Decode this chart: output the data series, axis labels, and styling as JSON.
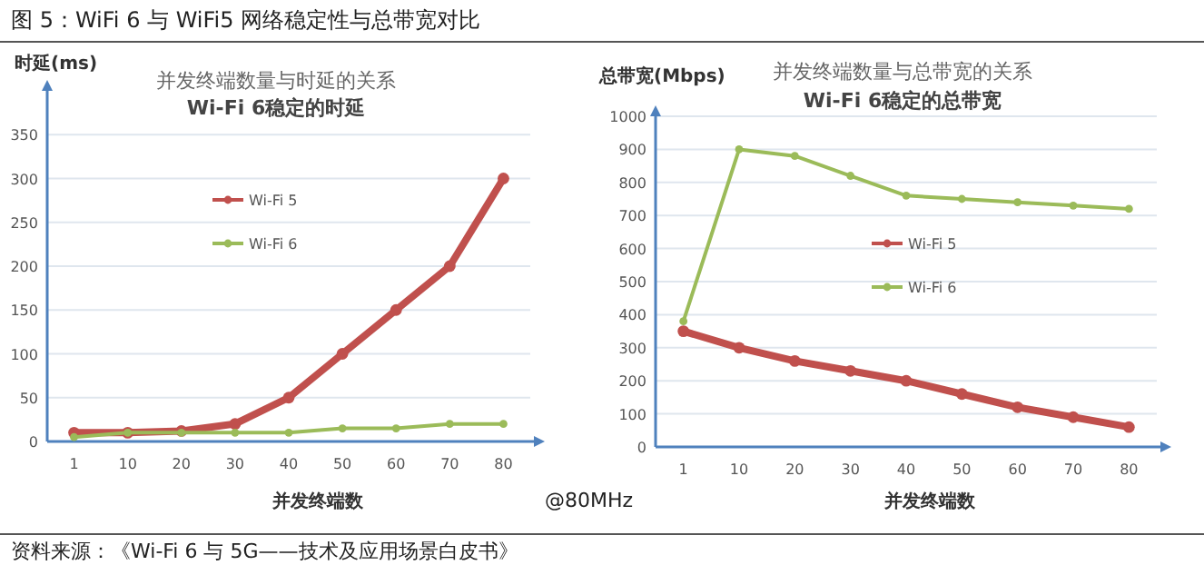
{
  "chart_data": [
    {
      "type": "line",
      "title": "并发终端数量与时延的关系",
      "subtitle": "Wi-Fi 6稳定的时延",
      "ylabel": "时延(ms)",
      "xlabel": "并发终端数",
      "categories": [
        "1",
        "10",
        "20",
        "30",
        "40",
        "50",
        "60",
        "70",
        "80"
      ],
      "ylim": [
        0,
        400
      ],
      "yticks": [
        0,
        50,
        100,
        150,
        200,
        250,
        300,
        350
      ],
      "grid": "y",
      "marker": "circle",
      "legend": "center",
      "annotations": [
        "图 5：WiFi 6 与 WiFi5 网络稳定性与总带宽对比"
      ],
      "series": [
        {
          "name": "Wi-Fi 5",
          "color": "#c0504d",
          "values": [
            10,
            10,
            12,
            20,
            50,
            100,
            150,
            200,
            300
          ]
        },
        {
          "name": "Wi-Fi 6",
          "color": "#9bbb59",
          "values": [
            5,
            10,
            10,
            10,
            10,
            15,
            15,
            20,
            20
          ]
        }
      ]
    },
    {
      "type": "line",
      "title": "并发终端数量与总带宽的关系",
      "subtitle": "Wi-Fi 6稳定的总带宽",
      "ylabel": "总带宽(Mbps)",
      "xlabel": "并发终端数",
      "categories": [
        "1",
        "10",
        "20",
        "30",
        "40",
        "50",
        "60",
        "70",
        "80"
      ],
      "ylim": [
        0,
        1000
      ],
      "yticks": [
        0,
        100,
        200,
        300,
        400,
        500,
        600,
        700,
        800,
        900,
        1000
      ],
      "grid": "y",
      "marker": "circle",
      "legend": "center",
      "annotations": [
        "@80MHz",
        "资料来源：《Wi-Fi 6 与 5G——技术及应用场景白皮书》"
      ],
      "series": [
        {
          "name": "Wi-Fi 5",
          "color": "#c0504d",
          "values": [
            350,
            300,
            260,
            230,
            200,
            160,
            120,
            90,
            60
          ]
        },
        {
          "name": "Wi-Fi 6",
          "color": "#9bbb59",
          "values": [
            380,
            900,
            880,
            820,
            760,
            750,
            740,
            730,
            720
          ]
        }
      ]
    }
  ]
}
